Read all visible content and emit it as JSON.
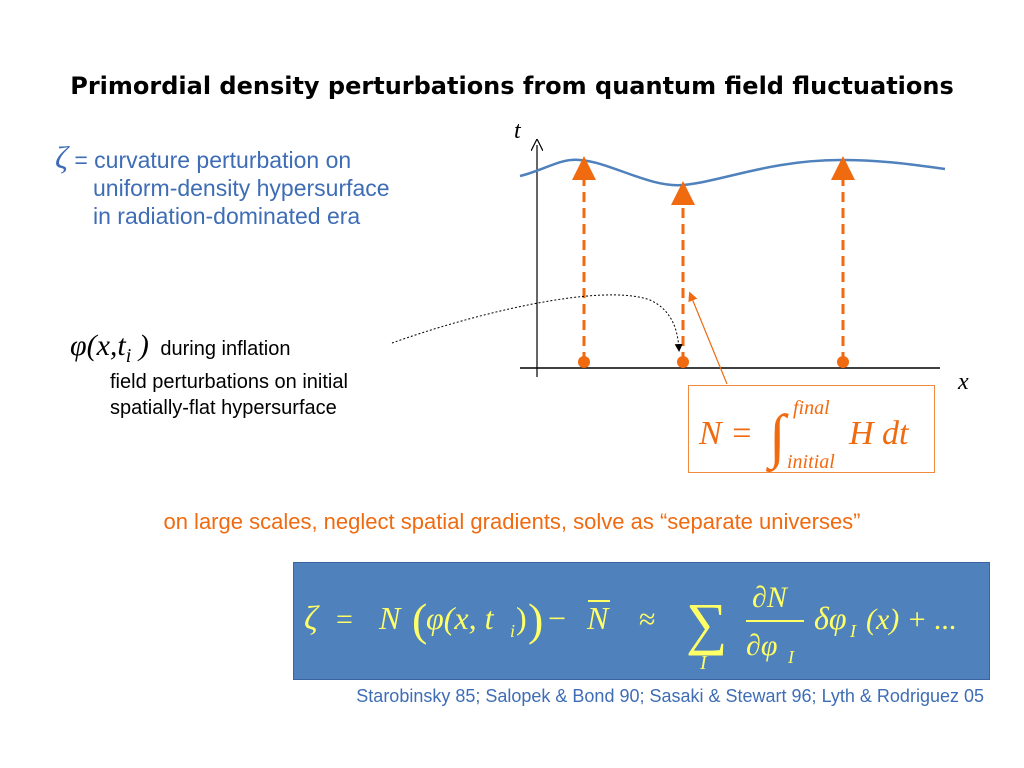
{
  "title": "Primordial density perturbations from quantum field fluctuations",
  "zeta_def": {
    "symbol": "ζ",
    "line1": " = curvature perturbation on",
    "line2": "uniform-density hypersurface",
    "line3": "in radiation-dominated era"
  },
  "phi_block": {
    "math": "φ(x,t",
    "math_sub": "i",
    "math_close": " )",
    "line1": "during inflation",
    "line2": "field perturbations on initial",
    "line3": "spatially-flat hypersurface"
  },
  "axes": {
    "t_label": "t",
    "x_label": "x"
  },
  "nbox": {
    "lhs": "N =",
    "upper": "final",
    "lower": "initial",
    "rhs": "H dt"
  },
  "orange_line": "on large scales, neglect spatial gradients, solve as “separate universes”",
  "main_eq": {
    "zeta": "ζ",
    "eq": "=",
    "N": "N",
    "phi_arg": "φ(x, t",
    "sub_i": "i",
    "minus": "−",
    "Nbar": "N",
    "approx": "≈",
    "sum": "∑",
    "sum_index": "I",
    "frac_num": "∂N",
    "frac_den": "∂φ",
    "frac_den_sub": "I",
    "delta_phi": "δφ",
    "delta_sub": "I",
    "delta_arg": "(x) + ...",
    "color_fg": "#ffff66"
  },
  "refs": "Starobinsky 85; Salopek & Bond 90; Sasaki & Stewart 96; Lyth & Rodriguez 05",
  "colors": {
    "blue": "#3e6db5",
    "orange": "#f06a10",
    "eqbox": "#4f81bd"
  }
}
